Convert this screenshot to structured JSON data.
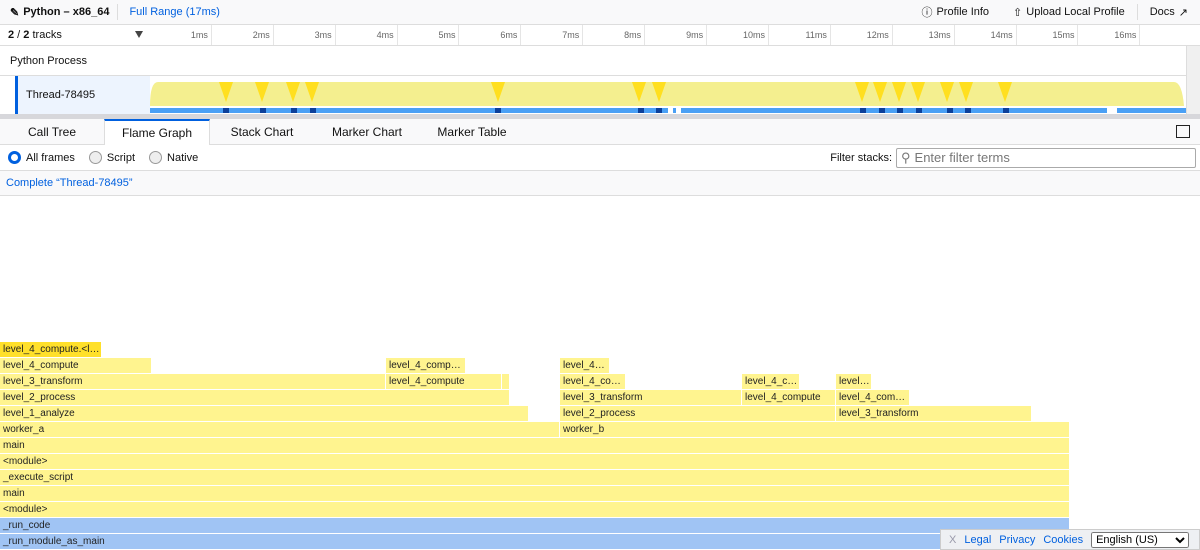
{
  "topbar": {
    "title": "Python – x86_64",
    "range": "Full Range (17ms)",
    "profile_info": "Profile Info",
    "upload": "Upload Local Profile",
    "docs": "Docs"
  },
  "timeline": {
    "tracks_visible": "2",
    "tracks_total": "2",
    "tracks_word": "tracks",
    "ticks": [
      "1ms",
      "2ms",
      "3ms",
      "4ms",
      "5ms",
      "6ms",
      "7ms",
      "8ms",
      "9ms",
      "10ms",
      "11ms",
      "12ms",
      "13ms",
      "14ms",
      "15ms",
      "16ms"
    ],
    "process": "Python Process",
    "thread": "Thread-78495"
  },
  "tabs": [
    "Call Tree",
    "Flame Graph",
    "Stack Chart",
    "Marker Chart",
    "Marker Table"
  ],
  "selected_tab": "Flame Graph",
  "options": {
    "all_frames": "All frames",
    "script": "Script",
    "native": "Native",
    "selected": "All frames",
    "filter_label": "Filter stacks:",
    "filter_placeholder": "Enter filter terms"
  },
  "breadcrumb": "Complete “Thread-78495”",
  "flame_frames": [
    "_run_module_as_main",
    "_run_code",
    "<module>",
    "main",
    "_execute_script",
    "<module>",
    "main",
    "worker_a",
    "worker_b",
    "level_1_analyze",
    "level_2_process",
    "level_3_transform",
    "level_2_process",
    "level_3_transform",
    "level_4_compute",
    "level_4_com…",
    "level_3_transform",
    "level_4_compute",
    "",
    "level_4_co…",
    "level_4_c…",
    "level…",
    "level_4_compute",
    "level_4_comp…",
    "level_4…",
    "level_4_compute.<l…"
  ],
  "colors": {
    "accent": "#0060df",
    "js_frame": "#fff48f",
    "selected_frame": "#ffe02a",
    "native_frame": "#a0c4f4"
  },
  "footer": {
    "close": "X",
    "legal": "Legal",
    "privacy": "Privacy",
    "cookies": "Cookies",
    "language": "English (US)"
  }
}
